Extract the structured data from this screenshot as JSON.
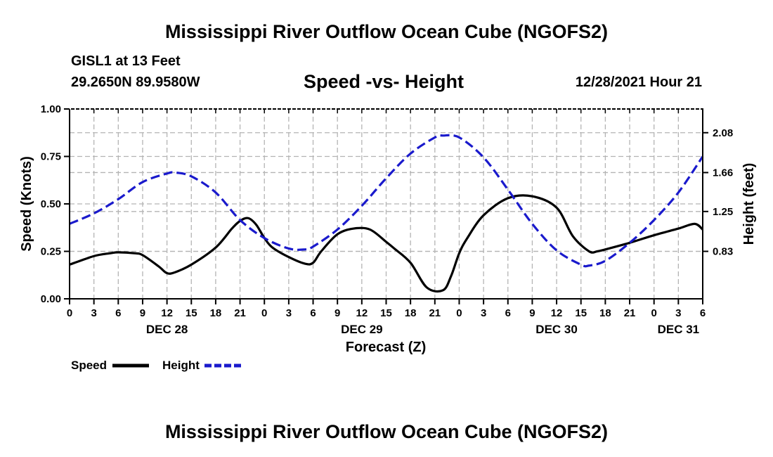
{
  "page": {
    "title": "Mississippi River Outflow Ocean Cube (NGOFS2)",
    "title_repeat": "Mississippi River Outflow Ocean Cube (NGOFS2)",
    "station": "GISL1 at 13 Feet",
    "coordinates": "29.2650N  89.9580W",
    "subtitle": "Speed -vs- Height",
    "datetime": "12/28/2021 Hour 21"
  },
  "chart_data": {
    "type": "line",
    "title": "Speed -vs- Height",
    "xlabel": "Forecast (Z)",
    "ylabel": "Speed (Knots)",
    "y2label": "Height (feet)",
    "xlim": [
      0,
      78
    ],
    "ylim": [
      0,
      1
    ],
    "y2lim": [
      0.33,
      2.33
    ],
    "x_ticks": [
      0,
      3,
      6,
      9,
      12,
      15,
      18,
      21,
      24,
      27,
      30,
      33,
      36,
      39,
      42,
      45,
      48,
      51,
      54,
      57,
      60,
      63,
      66,
      69,
      72,
      75,
      78
    ],
    "x_tick_labels": [
      "0",
      "3",
      "6",
      "9",
      "12",
      "15",
      "18",
      "21",
      "0",
      "3",
      "6",
      "9",
      "12",
      "15",
      "18",
      "21",
      "0",
      "3",
      "6",
      "9",
      "12",
      "15",
      "18",
      "21",
      "0",
      "3",
      "6"
    ],
    "day_labels": [
      {
        "x": 12,
        "label": "DEC 28"
      },
      {
        "x": 36,
        "label": "DEC 29"
      },
      {
        "x": 60,
        "label": "DEC 30"
      },
      {
        "x": 75,
        "label": "DEC 31"
      }
    ],
    "y_ticks": [
      0,
      0.25,
      0.5,
      0.75,
      1.0
    ],
    "y_tick_labels": [
      "0.00",
      "0.25",
      "0.50",
      "0.75",
      "1.00"
    ],
    "y2_ticks": [
      0.83,
      1.25,
      1.66,
      2.08
    ],
    "y2_tick_labels": [
      "0.83",
      "1.25",
      "1.66",
      "2.08"
    ],
    "grid": true,
    "legend": [
      "Speed",
      "Height"
    ],
    "series": [
      {
        "name": "Speed",
        "axis": "left",
        "color": "#000000",
        "dash": "solid",
        "x": [
          0,
          3,
          5,
          6,
          8,
          9,
          11,
          12,
          13,
          15,
          18,
          20,
          21,
          22,
          23,
          24,
          25,
          27,
          29,
          30,
          31,
          33,
          35,
          37,
          39,
          40,
          42,
          44,
          46,
          47,
          48,
          49,
          51,
          54,
          57,
          60,
          62,
          64,
          65,
          66,
          69,
          72,
          75,
          77,
          78
        ],
        "y": [
          0.18,
          0.225,
          0.24,
          0.245,
          0.24,
          0.23,
          0.17,
          0.135,
          0.14,
          0.18,
          0.27,
          0.37,
          0.41,
          0.425,
          0.39,
          0.32,
          0.27,
          0.22,
          0.185,
          0.19,
          0.25,
          0.34,
          0.37,
          0.365,
          0.3,
          0.265,
          0.19,
          0.06,
          0.045,
          0.12,
          0.24,
          0.32,
          0.44,
          0.53,
          0.54,
          0.48,
          0.33,
          0.25,
          0.25,
          0.26,
          0.295,
          0.335,
          0.37,
          0.395,
          0.365
        ]
      },
      {
        "name": "Height",
        "axis": "right",
        "color": "#1a1acc",
        "dash": "dashed",
        "x": [
          0,
          3,
          6,
          9,
          12,
          13,
          15,
          18,
          21,
          24,
          27,
          29,
          30,
          33,
          36,
          39,
          42,
          45,
          46,
          48,
          51,
          54,
          57,
          60,
          63,
          64,
          66,
          69,
          72,
          75,
          78
        ],
        "y": [
          1.12,
          1.23,
          1.38,
          1.56,
          1.65,
          1.66,
          1.62,
          1.45,
          1.16,
          0.97,
          0.86,
          0.85,
          0.88,
          1.06,
          1.31,
          1.6,
          1.86,
          2.03,
          2.05,
          2.03,
          1.82,
          1.48,
          1.12,
          0.84,
          0.69,
          0.68,
          0.73,
          0.92,
          1.16,
          1.45,
          1.83
        ]
      }
    ]
  }
}
